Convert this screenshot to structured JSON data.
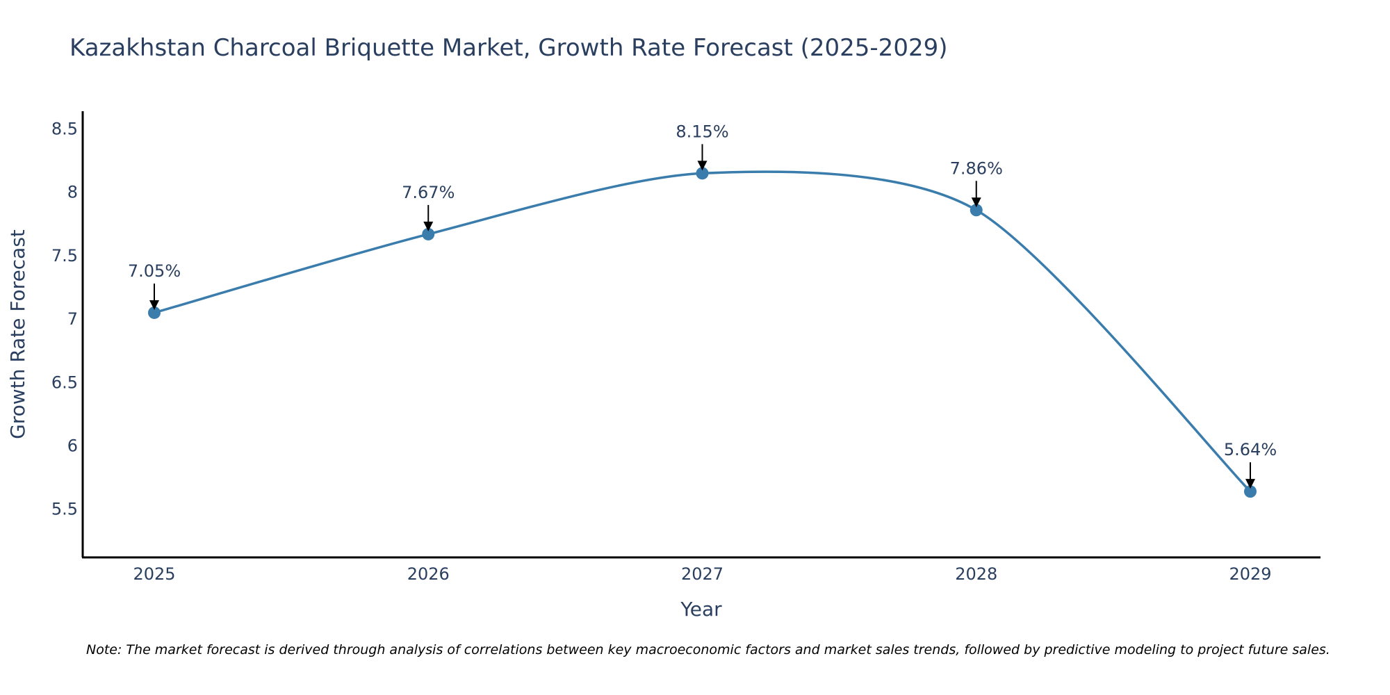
{
  "chart_data": {
    "type": "line",
    "title": "Kazakhstan Charcoal Briquette Market, Growth Rate Forecast (2025-2029)",
    "xlabel": "Year",
    "ylabel": "Growth Rate Forecast",
    "categories": [
      "2025",
      "2026",
      "2027",
      "2028",
      "2029"
    ],
    "series": [
      {
        "name": "Growth Rate Forecast",
        "values": [
          7.05,
          7.67,
          8.15,
          7.86,
          5.64
        ],
        "color": "#3a7dad"
      }
    ],
    "data_labels": [
      "7.05%",
      "7.67%",
      "8.15%",
      "7.86%",
      "5.64%"
    ],
    "y_ticks": [
      5.5,
      6,
      6.5,
      7,
      7.5,
      8,
      8.5
    ],
    "y_tick_labels": [
      "5.5",
      "6",
      "6.5",
      "7",
      "7.5",
      "8",
      "8.5"
    ],
    "ylim": [
      5.12,
      8.64
    ],
    "grid": false,
    "line_shape": "spline",
    "axis_color": "#000000",
    "text_color": "#2a3f5f",
    "annotation_arrow_color": "#000000"
  },
  "note": "Note: The market forecast is derived through analysis of correlations between key macroeconomic factors and market sales trends, followed by predictive modeling to project future sales."
}
